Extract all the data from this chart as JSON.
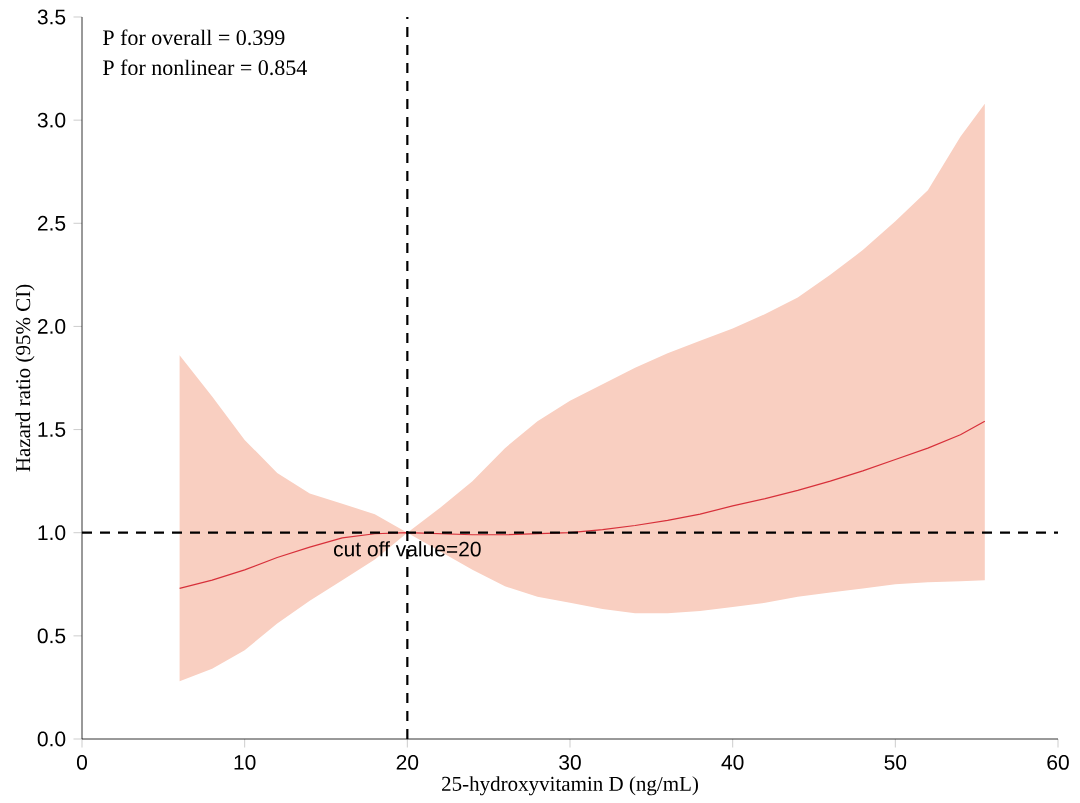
{
  "chart_data": {
    "type": "line",
    "xlabel": "25-hydroxyvitamin D (ng/mL)",
    "ylabel": "Hazard ratio (95% CI)",
    "xlim": [
      0,
      60
    ],
    "xticks": [
      0,
      10,
      20,
      30,
      40,
      50,
      60
    ],
    "ylim": [
      0,
      3.5
    ],
    "yticks": [
      {
        "value": 0,
        "label": "0.0"
      },
      {
        "value": 0.5,
        "label": "0.5"
      },
      {
        "value": 1,
        "label": "1.0"
      },
      {
        "value": 1.5,
        "label": "1.5"
      },
      {
        "value": 2,
        "label": "2.0"
      },
      {
        "value": 2.5,
        "label": "2.5"
      },
      {
        "value": 3,
        "label": "3.0"
      },
      {
        "value": 3.5,
        "label": "3.5"
      }
    ],
    "series": [
      {
        "color": "#d7303a",
        "x": [
          6,
          8,
          10,
          12,
          14,
          16,
          18,
          20,
          22,
          24,
          26,
          28,
          30,
          32,
          34,
          36,
          38,
          40,
          42,
          44,
          46,
          48,
          50,
          52,
          54,
          55.5
        ],
        "values": [
          0.73,
          0.77,
          0.82,
          0.88,
          0.93,
          0.975,
          0.995,
          1.0,
          0.995,
          0.99,
          0.99,
          0.995,
          1.0,
          1.015,
          1.035,
          1.06,
          1.09,
          1.13,
          1.165,
          1.205,
          1.25,
          1.3,
          1.355,
          1.41,
          1.475,
          1.54
        ],
        "upper": [
          1.86,
          1.66,
          1.45,
          1.29,
          1.19,
          1.14,
          1.09,
          1.0,
          1.12,
          1.25,
          1.41,
          1.54,
          1.64,
          1.72,
          1.8,
          1.87,
          1.93,
          1.99,
          2.06,
          2.14,
          2.25,
          2.37,
          2.51,
          2.66,
          2.92,
          3.08
        ],
        "lower": [
          0.28,
          0.34,
          0.43,
          0.56,
          0.67,
          0.77,
          0.87,
          1.0,
          0.91,
          0.82,
          0.74,
          0.69,
          0.66,
          0.63,
          0.61,
          0.61,
          0.62,
          0.64,
          0.66,
          0.69,
          0.71,
          0.73,
          0.75,
          0.76,
          0.765,
          0.77
        ]
      }
    ],
    "ref_lines": [
      {
        "axis": "x",
        "value": 20,
        "line_style": "dashed",
        "color": "#000000"
      },
      {
        "axis": "y",
        "value": 1,
        "line_style": "dashed",
        "color": "#000000"
      }
    ],
    "annotations": [
      "P for overall = 0.399",
      "P for nonlinear = 0.854",
      {
        "text": "cut off value=20",
        "x": 20,
        "y": 1
      }
    ],
    "grid": false
  }
}
